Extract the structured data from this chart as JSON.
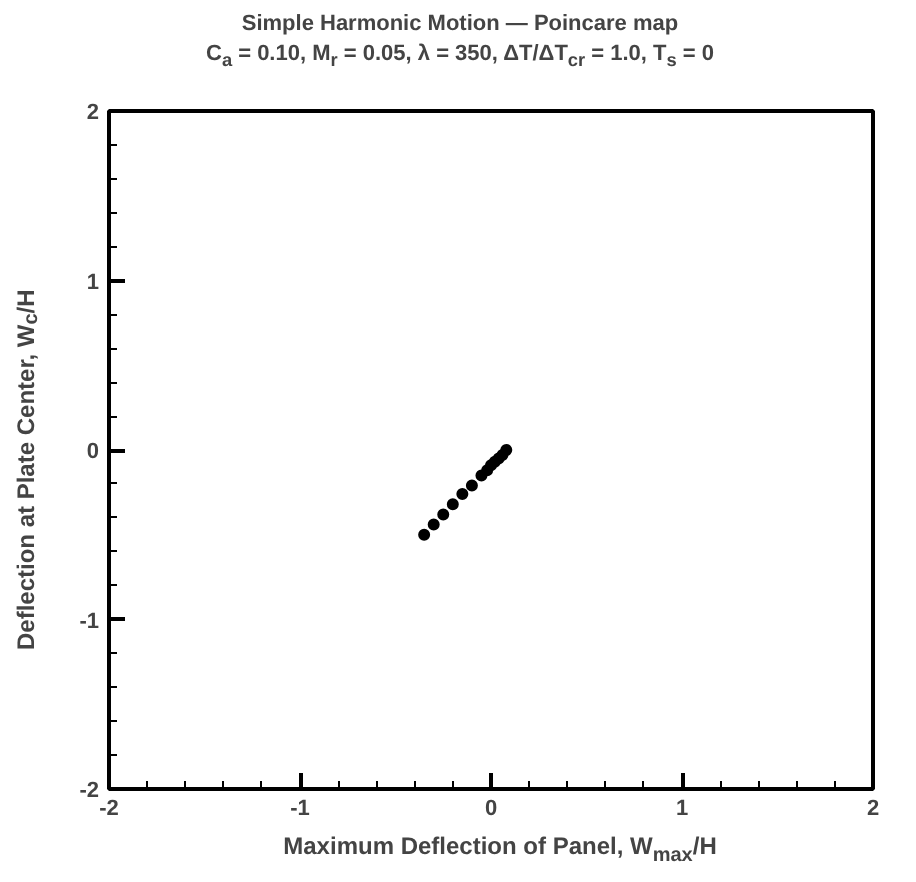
{
  "chart_data": {
    "type": "scatter",
    "title": "Simple Harmonic Motion — Poincare map",
    "subtitle": "C$_{a}$ = 0.10, M$_{r}$ = 0.05, λ = 350, ΔT/ΔT$_{cr}$ = 1.0, T$_{s}$ = 0",
    "xlabel": "Maximum Deflection of Panel, W$_{max}$/H",
    "ylabel": "Deflection at Plate Center, W$_{c}$/H",
    "x": [
      -0.35,
      -0.3,
      -0.25,
      -0.2,
      -0.15,
      -0.1,
      -0.05,
      -0.02,
      0.0,
      0.02,
      0.04,
      0.06,
      0.08
    ],
    "series": [
      {
        "color": "#000000",
        "values": [
          -0.5,
          -0.44,
          -0.38,
          -0.32,
          -0.26,
          -0.21,
          -0.15,
          -0.12,
          -0.09,
          -0.07,
          -0.05,
          -0.03,
          0.0
        ]
      }
    ],
    "xlim": [
      -2,
      2
    ],
    "ylim": [
      -2,
      2
    ],
    "xticks": [
      -2,
      -1,
      0,
      1,
      2
    ],
    "yticks": [
      -2,
      -1,
      0,
      1,
      2
    ],
    "grid": false,
    "marker": "circle"
  }
}
